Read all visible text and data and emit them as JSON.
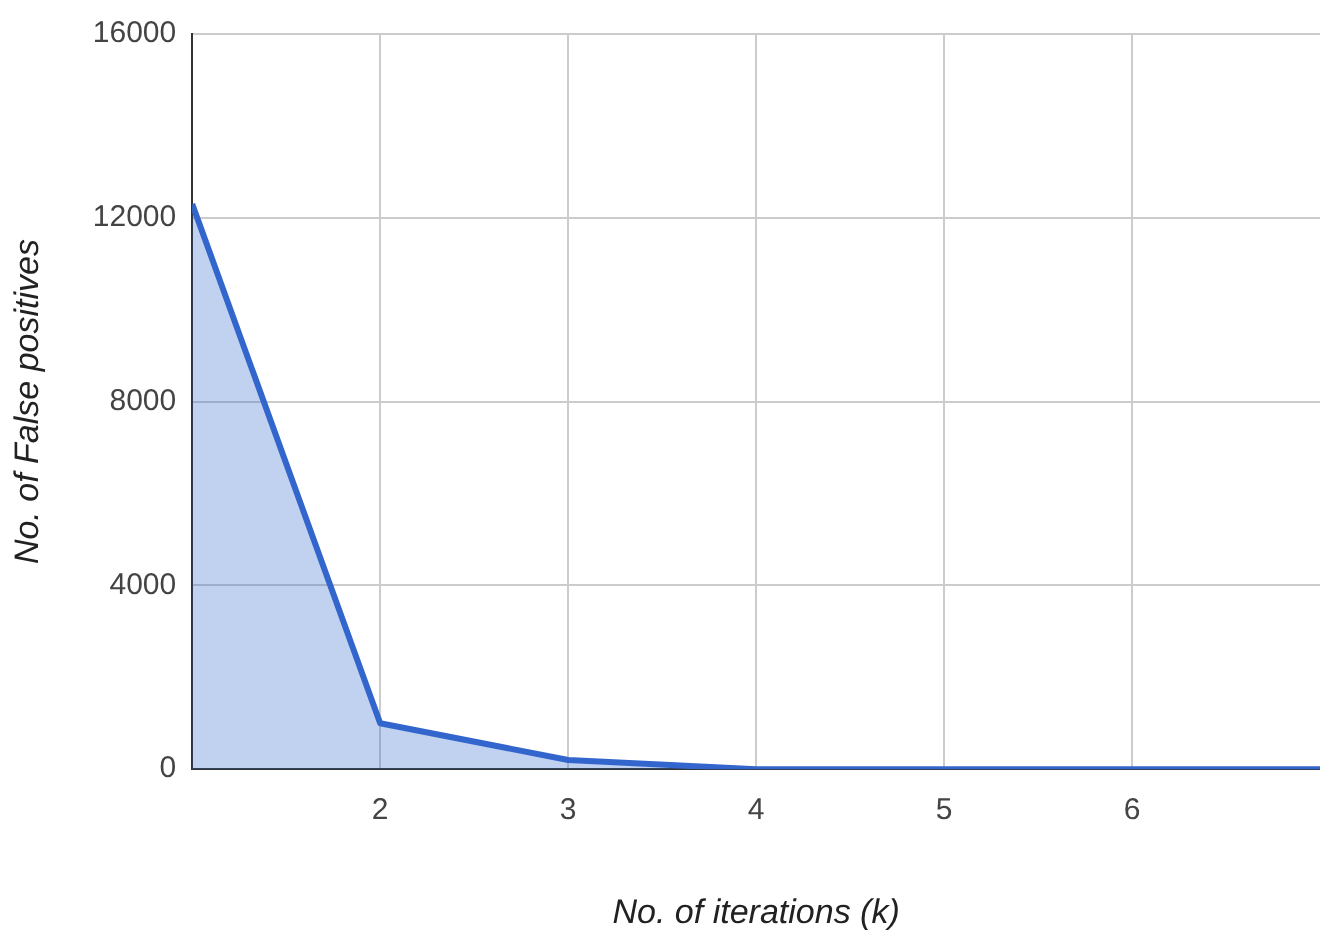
{
  "chart_data": {
    "type": "area",
    "xlabel": "No. of iterations (k)",
    "ylabel": "No. of False positives",
    "x": [
      1,
      2,
      3,
      4,
      5,
      6,
      7
    ],
    "series": [
      {
        "color": "#3366cc",
        "values": [
          12300,
          1000,
          200,
          0,
          0,
          0,
          0
        ]
      }
    ],
    "xlim": [
      1,
      7
    ],
    "xticks": [
      2,
      3,
      4,
      5,
      6
    ],
    "ylim": [
      0,
      16000
    ],
    "yticks": [
      0,
      4000,
      8000,
      12000,
      16000
    ],
    "grid": true,
    "legend": false,
    "marker": "none",
    "line_style": "solid"
  }
}
